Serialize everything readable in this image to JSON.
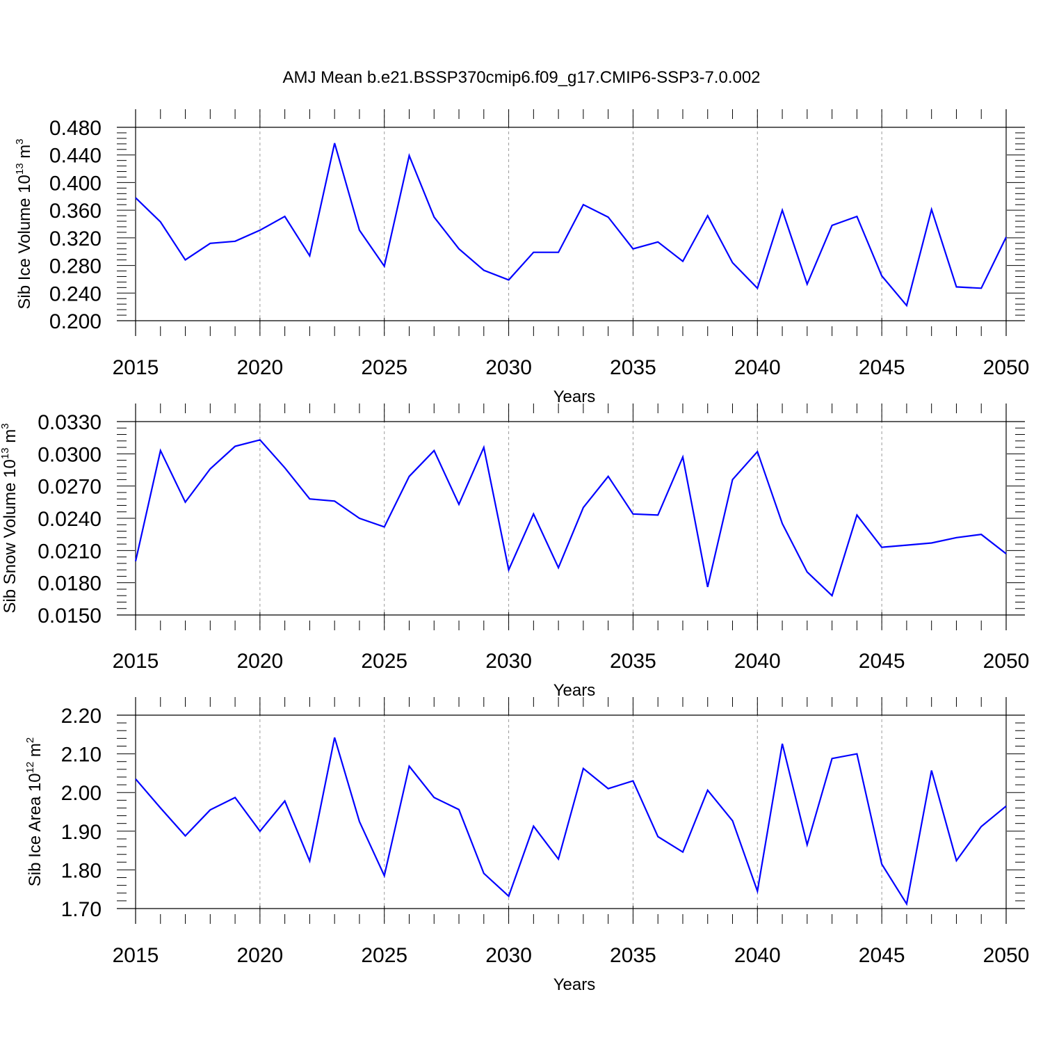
{
  "chart_title": "AMJ Mean b.e21.BSSP370cmip6.f09_g17.CMIP6-SSP3-7.0.002",
  "chart_data": [
    {
      "type": "line",
      "title": "AMJ Mean b.e21.BSSP370cmip6.f09_g17.CMIP6-SSP3-7.0.002",
      "xlabel": "Years",
      "ylabel": {
        "main": "Sib Ice Volume 10",
        "exp": "13",
        "unit": " m",
        "unit_exp": "3"
      },
      "xlim": [
        2015,
        2050
      ],
      "ylim": [
        0.2,
        0.48
      ],
      "xticks": [
        2015,
        2020,
        2025,
        2030,
        2035,
        2040,
        2045,
        2050
      ],
      "yticks": [
        0.2,
        0.24,
        0.28,
        0.32,
        0.36,
        0.4,
        0.44,
        0.48
      ],
      "ytick_labels": [
        "0.200",
        "0.240",
        "0.280",
        "0.320",
        "0.360",
        "0.400",
        "0.440",
        "0.480"
      ],
      "x": [
        2015,
        2016,
        2017,
        2018,
        2019,
        2020,
        2021,
        2022,
        2023,
        2024,
        2025,
        2026,
        2027,
        2028,
        2029,
        2030,
        2031,
        2032,
        2033,
        2034,
        2035,
        2036,
        2037,
        2038,
        2039,
        2040,
        2041,
        2042,
        2043,
        2044,
        2045,
        2046,
        2047,
        2048,
        2049,
        2050
      ],
      "series": [
        {
          "name": "Sib Ice Volume",
          "color": "#0000ff",
          "values": [
            0.378,
            0.343,
            0.288,
            0.312,
            0.315,
            0.331,
            0.351,
            0.294,
            0.457,
            0.331,
            0.279,
            0.439,
            0.35,
            0.304,
            0.273,
            0.259,
            0.299,
            0.299,
            0.368,
            0.35,
            0.304,
            0.314,
            0.286,
            0.352,
            0.284,
            0.247,
            0.36,
            0.253,
            0.338,
            0.351,
            0.265,
            0.222,
            0.361,
            0.249,
            0.247,
            0.321
          ]
        }
      ]
    },
    {
      "type": "line",
      "xlabel": "Years",
      "ylabel": {
        "main": "Sib Snow Volume 10",
        "exp": "13",
        "unit": " m",
        "unit_exp": "3"
      },
      "xlim": [
        2015,
        2050
      ],
      "ylim": [
        0.015,
        0.033
      ],
      "xticks": [
        2015,
        2020,
        2025,
        2030,
        2035,
        2040,
        2045,
        2050
      ],
      "yticks": [
        0.015,
        0.018,
        0.021,
        0.024,
        0.027,
        0.03,
        0.033
      ],
      "ytick_labels": [
        "0.0150",
        "0.0180",
        "0.0210",
        "0.0240",
        "0.0270",
        "0.0300",
        "0.0330"
      ],
      "x": [
        2015,
        2016,
        2017,
        2018,
        2019,
        2020,
        2021,
        2022,
        2023,
        2024,
        2025,
        2026,
        2027,
        2028,
        2029,
        2030,
        2031,
        2032,
        2033,
        2034,
        2035,
        2036,
        2037,
        2038,
        2039,
        2040,
        2041,
        2042,
        2043,
        2044,
        2045,
        2046,
        2047,
        2048,
        2049,
        2050
      ],
      "series": [
        {
          "name": "Sib Snow Volume",
          "color": "#0000ff",
          "values": [
            0.02,
            0.0303,
            0.0255,
            0.0286,
            0.0307,
            0.0313,
            0.0287,
            0.0258,
            0.0256,
            0.024,
            0.0232,
            0.0279,
            0.0303,
            0.0253,
            0.0306,
            0.0192,
            0.0244,
            0.0194,
            0.025,
            0.0279,
            0.0244,
            0.0243,
            0.0297,
            0.0176,
            0.0276,
            0.0302,
            0.0235,
            0.019,
            0.0168,
            0.0243,
            0.0213,
            0.0215,
            0.0217,
            0.0222,
            0.0225,
            0.0207
          ]
        }
      ]
    },
    {
      "type": "line",
      "xlabel": "Years",
      "ylabel": {
        "main": "Sib Ice Area 10",
        "exp": "12",
        "unit": " m",
        "unit_exp": "2"
      },
      "xlim": [
        2015,
        2050
      ],
      "ylim": [
        1.7,
        2.2
      ],
      "xticks": [
        2015,
        2020,
        2025,
        2030,
        2035,
        2040,
        2045,
        2050
      ],
      "yticks": [
        1.7,
        1.8,
        1.9,
        2.0,
        2.1,
        2.2
      ],
      "ytick_labels": [
        "1.70",
        "1.80",
        "1.90",
        "2.00",
        "2.10",
        "2.20"
      ],
      "x": [
        2015,
        2016,
        2017,
        2018,
        2019,
        2020,
        2021,
        2022,
        2023,
        2024,
        2025,
        2026,
        2027,
        2028,
        2029,
        2030,
        2031,
        2032,
        2033,
        2034,
        2035,
        2036,
        2037,
        2038,
        2039,
        2040,
        2041,
        2042,
        2043,
        2044,
        2045,
        2046,
        2047,
        2048,
        2049,
        2050
      ],
      "series": [
        {
          "name": "Sib Ice Area",
          "color": "#0000ff",
          "values": [
            2.035,
            1.96,
            1.888,
            1.955,
            1.987,
            1.9,
            1.978,
            1.823,
            2.142,
            1.925,
            1.785,
            2.068,
            1.987,
            1.956,
            1.791,
            1.732,
            1.913,
            1.828,
            2.062,
            2.01,
            2.03,
            1.886,
            1.846,
            2.006,
            1.927,
            1.745,
            2.126,
            1.865,
            2.088,
            2.1,
            1.815,
            1.712,
            2.057,
            1.824,
            1.912,
            1.965
          ]
        }
      ]
    }
  ]
}
